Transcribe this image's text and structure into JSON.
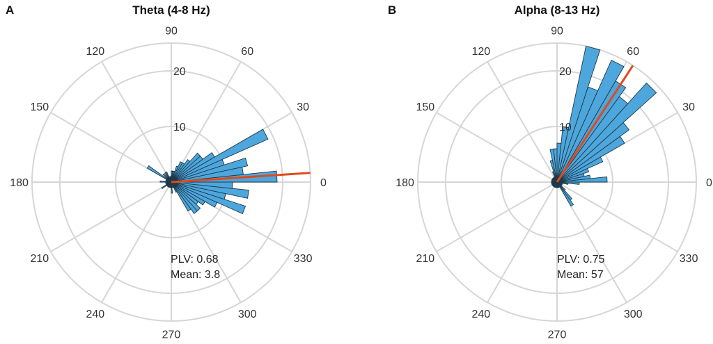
{
  "chart_data": [
    {
      "type": "polar-histogram",
      "panel": "A",
      "title": "Theta (4-8 Hz)",
      "angle_ticks": [
        "0",
        "30",
        "60",
        "90",
        "120",
        "150",
        "180",
        "210",
        "240",
        "270",
        "300",
        "330"
      ],
      "radial_ticks": [
        "10",
        "20"
      ],
      "rlim": [
        0,
        25
      ],
      "bin_width_deg": 6,
      "bin_centers_deg": [
        -57,
        -51,
        -45,
        -39,
        -33,
        -27,
        -21,
        -15,
        -9,
        -3,
        3,
        9,
        15,
        21,
        27,
        33,
        39,
        45,
        51,
        57,
        63,
        69,
        75,
        81,
        87,
        93,
        99,
        105,
        111,
        117,
        123,
        129,
        135,
        141,
        147,
        153,
        159,
        165,
        171,
        177,
        183,
        189,
        195,
        201,
        207,
        213,
        219,
        225,
        231,
        237,
        243,
        249,
        255,
        261,
        267,
        273,
        279,
        285,
        291,
        297
      ],
      "counts": [
        6,
        7,
        7,
        6,
        7,
        9,
        14,
        10,
        14,
        11,
        19,
        13,
        14,
        10,
        19,
        9,
        7,
        7,
        5,
        4,
        4,
        3,
        2,
        2,
        2,
        1,
        1,
        1,
        1,
        2,
        2,
        1,
        2,
        1,
        5,
        1,
        1,
        1,
        1,
        2,
        1,
        1,
        1,
        1,
        1,
        2,
        1,
        1,
        1,
        1,
        1,
        1,
        1,
        1,
        1,
        2,
        1,
        1,
        1,
        2
      ],
      "mean_angle_deg": 3.8,
      "mean_line_length": 25,
      "annotations": {
        "plv": "PLV: 0.68",
        "mean": "Mean: 3.8"
      },
      "colors": {
        "bar": "#4da6dc",
        "mean_line": "#e04a1a",
        "grid": "#d6d6d6"
      }
    },
    {
      "type": "polar-histogram",
      "panel": "B",
      "title": "Alpha (8-13 Hz)",
      "angle_ticks": [
        "0",
        "30",
        "60",
        "90",
        "120",
        "150",
        "180",
        "210",
        "240",
        "270",
        "300",
        "330"
      ],
      "radial_ticks": [
        "10",
        "20"
      ],
      "rlim": [
        0,
        25
      ],
      "bin_width_deg": 6,
      "bin_centers_deg": [
        -57,
        -51,
        -45,
        -39,
        -33,
        -27,
        -21,
        -15,
        -9,
        -3,
        3,
        9,
        15,
        21,
        27,
        33,
        39,
        45,
        51,
        57,
        63,
        69,
        75,
        81,
        87,
        93,
        99,
        105,
        111,
        117,
        123,
        129,
        135,
        141,
        147,
        153,
        159,
        165,
        171,
        177,
        183,
        189,
        195,
        201,
        207,
        213,
        219,
        225,
        231,
        237,
        243,
        249,
        255,
        261,
        267,
        273,
        279,
        285,
        291,
        297
      ],
      "counts": [
        5,
        4,
        2,
        1,
        1,
        1,
        1,
        1,
        2,
        4,
        9,
        6,
        5,
        6,
        9,
        14,
        16,
        24,
        19,
        21,
        24,
        18,
        25,
        10,
        7,
        6,
        6,
        4,
        2,
        1,
        1,
        1,
        1,
        1,
        1,
        1,
        1,
        1,
        1,
        1,
        1,
        1,
        1,
        1,
        1,
        1,
        1,
        1,
        1,
        1,
        1,
        1,
        1,
        1,
        1,
        1,
        1,
        1,
        1,
        1
      ],
      "mean_angle_deg": 57,
      "mean_line_length": 25,
      "annotations": {
        "plv": "PLV: 0.75",
        "mean": "Mean: 57"
      },
      "colors": {
        "bar": "#4da6dc",
        "mean_line": "#e04a1a",
        "grid": "#d6d6d6"
      }
    }
  ]
}
